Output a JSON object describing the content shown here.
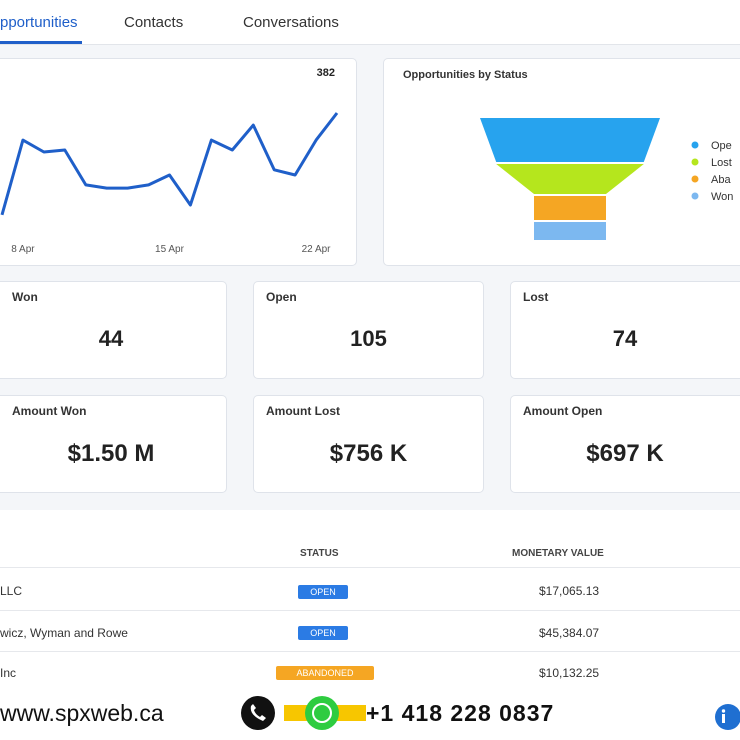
{
  "tabs": [
    "pportunities",
    "Contacts",
    "Conversations"
  ],
  "chart_data": [
    {
      "type": "line",
      "categories": [
        null,
        "8 Apr",
        null,
        null,
        null,
        null,
        null,
        null,
        "15 Apr",
        null,
        null,
        null,
        null,
        null,
        null,
        "22 Apr",
        null
      ],
      "series": [
        {
          "color": "#1f5fc9",
          "values": [
            63,
            297,
            260,
            266,
            157,
            147,
            147,
            157,
            188,
            94,
            297,
            266,
            344,
            204,
            188,
            297,
            382
          ]
        }
      ]
    },
    {
      "type": "funnel",
      "title": "Opportunities by Status",
      "categories": [
        "Ope",
        "Lost",
        "Aba",
        "Won"
      ],
      "values": [
        100,
        82,
        40,
        40
      ],
      "colors": [
        "#27a3ee",
        "#b5e61d",
        "#f5a623",
        "#7cb8f0"
      ]
    }
  ],
  "stats": [
    {
      "label": "Won",
      "value": "44"
    },
    {
      "label": "Open",
      "value": "105"
    },
    {
      "label": "Lost",
      "value": "74"
    },
    {
      "label": "Amount Won",
      "value": "$1.50 M"
    },
    {
      "label": "Amount Lost",
      "value": "$756 K"
    },
    {
      "label": "Amount Open",
      "value": "$697 K"
    }
  ],
  "table": {
    "headers": [
      "STATUS",
      "MONETARY VALUE"
    ],
    "rows": [
      [
        "LLC",
        "OPEN",
        "$17,065.13"
      ],
      [
        "wicz, Wyman and Rowe",
        "OPEN",
        "$45,384.07"
      ],
      [
        "Inc",
        "ABANDONED",
        "$10,132.25"
      ]
    ]
  },
  "footer": {
    "website": "www.spxweb.ca",
    "phone": "+1 418 228 0837"
  }
}
